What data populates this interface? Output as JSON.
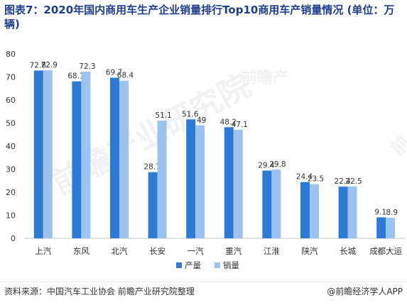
{
  "title": "图表7：2020年国内商用车生产企业销量排行Top10商用车产销量情况 (单位：万辆)",
  "source": "资料来源：中国汽车工业协会 前瞻产业研究院整理",
  "brand": "@前瞻经济学人APP",
  "watermark": {
    "text1": "前瞻产",
    "text2": "前瞻产业研究院",
    "text3": "前瞻"
  },
  "colors": {
    "production": "#2b7bd6",
    "sales": "#9cc3ef"
  },
  "chart_data": {
    "type": "bar",
    "categories": [
      "上汽",
      "东风",
      "北汽",
      "长安",
      "一汽",
      "重汽",
      "江淮",
      "陕汽",
      "长城",
      "成都大运"
    ],
    "series": [
      {
        "name": "产量",
        "values": [
          72.8,
          68.1,
          69.7,
          28.7,
          51.6,
          48.2,
          29.4,
          24.4,
          22.4,
          9.1
        ]
      },
      {
        "name": "销量",
        "values": [
          72.9,
          72.3,
          68.4,
          51.1,
          49,
          47.1,
          29.8,
          23.5,
          22.5,
          8.9
        ]
      }
    ],
    "ylim": [
      0,
      80
    ],
    "yticks": [
      0,
      10,
      20,
      30,
      40,
      50,
      60,
      70,
      80
    ],
    "grid": false,
    "legend": "bottom"
  }
}
